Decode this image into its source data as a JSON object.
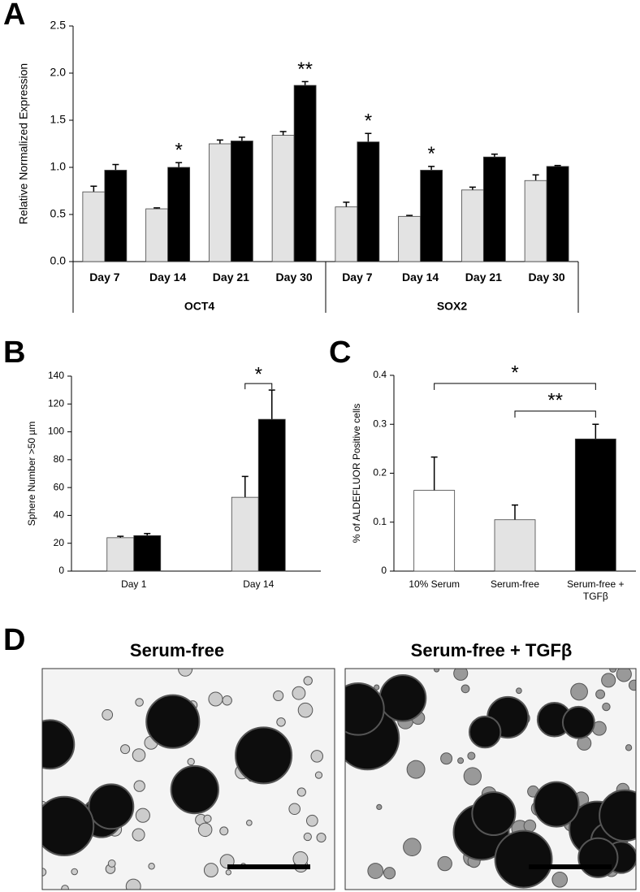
{
  "chart_data": [
    {
      "type": "bar",
      "panel": "A",
      "y_label": "Relative Normalized Expression",
      "categories": [
        "Day 7",
        "Day 14",
        "Day 21",
        "Day 30",
        "Day 7",
        "Day 14",
        "Day 21",
        "Day 30"
      ],
      "groups": [
        "OCT4",
        "SOX2"
      ],
      "series": [
        {
          "color": "#e3e3e3",
          "values": [
            0.74,
            0.56,
            1.25,
            1.34,
            0.58,
            0.48,
            0.76,
            0.86
          ],
          "errors": [
            0.06,
            0.01,
            0.04,
            0.04,
            0.05,
            0.01,
            0.03,
            0.06
          ]
        },
        {
          "color": "#000000",
          "values": [
            0.97,
            1.0,
            1.28,
            1.87,
            1.27,
            0.97,
            1.11,
            1.01
          ],
          "errors": [
            0.06,
            0.05,
            0.04,
            0.04,
            0.09,
            0.04,
            0.03,
            0.01
          ]
        }
      ],
      "significance": [
        null,
        "*",
        null,
        "**",
        "*",
        "*",
        null,
        null
      ],
      "ylim": [
        0,
        2.5
      ],
      "yticks": [
        {
          "value": 0,
          "label": "0.0"
        },
        0.5,
        {
          "value": 1,
          "label": "1.0"
        },
        1.5,
        {
          "value": 2,
          "label": "2.0"
        },
        2.5
      ]
    },
    {
      "type": "bar",
      "panel": "B",
      "y_label": "Sphere Number >50 µm",
      "categories": [
        "Day 1",
        "Day 14"
      ],
      "series": [
        {
          "color": "#e3e3e3",
          "values": [
            24,
            53
          ],
          "errors": [
            1,
            15
          ]
        },
        {
          "color": "#000000",
          "values": [
            25.5,
            109
          ],
          "errors": [
            1.5,
            21
          ]
        }
      ],
      "significance": [
        null,
        "*"
      ],
      "ylim": [
        0,
        140
      ],
      "yticks": [
        0,
        20,
        40,
        60,
        80,
        100,
        120,
        140
      ]
    },
    {
      "type": "bar",
      "panel": "C",
      "y_label": "% of ALDEFLUOR Positive cells",
      "categories": [
        "10% Serum",
        "Serum-free",
        "Serum-free + TGFβ"
      ],
      "values": [
        0.165,
        0.105,
        0.27
      ],
      "errors": [
        0.068,
        0.03,
        0.03
      ],
      "colors": [
        "#ffffff",
        "#e3e3e3",
        "#000000"
      ],
      "comparisons": [
        {
          "label": "*",
          "from": 0,
          "to": 2
        },
        {
          "label": "**",
          "from": 1,
          "to": 2
        }
      ],
      "ylim": [
        0,
        0.4
      ],
      "yticks": [
        0,
        0.1,
        0.2,
        0.3,
        0.4
      ]
    },
    {
      "type": "image",
      "panel": "D",
      "panels": [
        "Serum-free",
        "Serum-free + TGFβ"
      ]
    }
  ]
}
